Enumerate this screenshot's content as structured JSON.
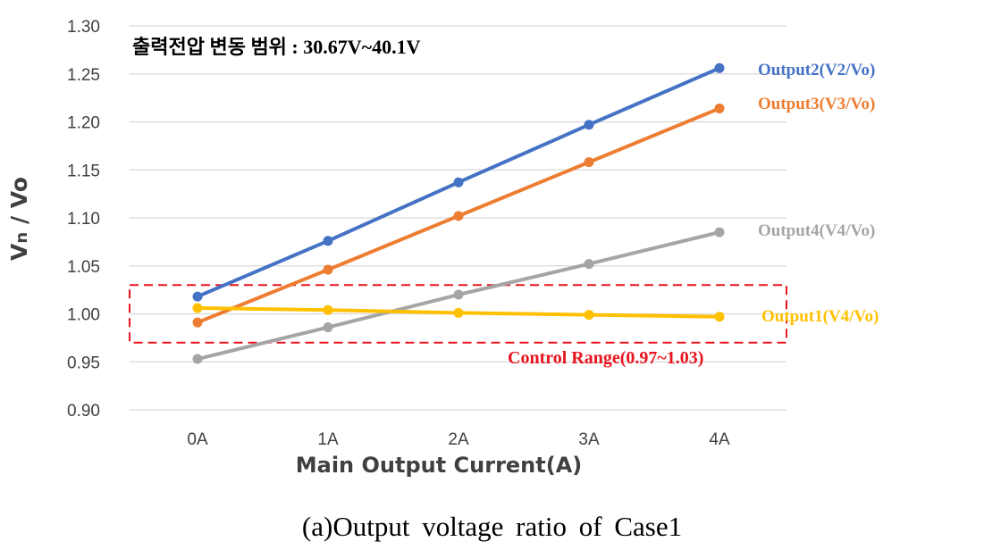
{
  "chart_data": {
    "type": "line",
    "annotation": "출력전압 변동 범위 : 30.67V~40.1V",
    "xlabel": "Main Output Current(A)",
    "ylabel": "Vn / Vo",
    "categories": [
      "0A",
      "1A",
      "2A",
      "3A",
      "4A"
    ],
    "ylim": [
      0.9,
      1.3
    ],
    "yticks": [
      "0.90",
      "0.95",
      "1.00",
      "1.05",
      "1.10",
      "1.15",
      "1.20",
      "1.25",
      "1.30"
    ],
    "grid": true,
    "series": [
      {
        "name": "Output2(V2/Vo)",
        "color": "#4472c4",
        "values": [
          1.018,
          1.076,
          1.137,
          1.197,
          1.256
        ]
      },
      {
        "name": "Output3(V3/Vo)",
        "color": "#ed7d31",
        "values": [
          0.991,
          1.046,
          1.102,
          1.158,
          1.214
        ]
      },
      {
        "name": "Output4(V4/Vo)",
        "color": "#a5a5a5",
        "values": [
          0.953,
          0.986,
          1.02,
          1.052,
          1.085
        ]
      },
      {
        "name": "Output1(V4/Vo)",
        "color": "#ffc000",
        "values": [
          1.006,
          1.004,
          1.001,
          0.999,
          0.997
        ]
      }
    ],
    "control_range": {
      "label": "Control Range(0.97~1.03)",
      "min": 0.97,
      "max": 1.03,
      "color": "#e8141e"
    }
  },
  "caption": "(a)Output voltage ratio of Case1"
}
